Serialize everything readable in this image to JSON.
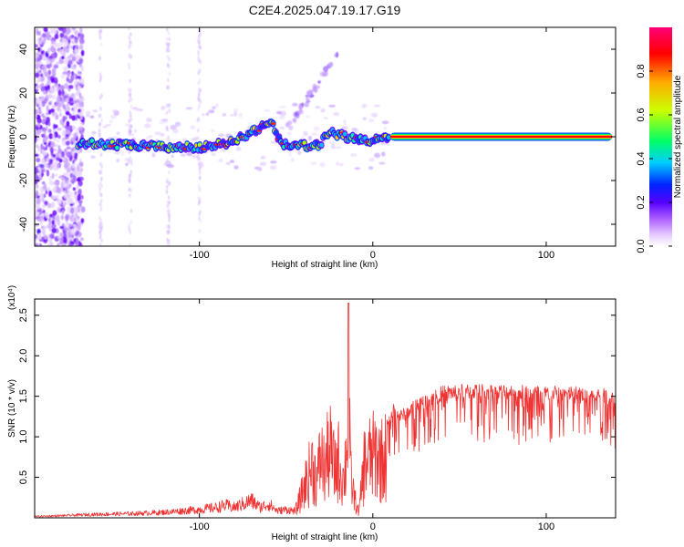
{
  "title": "C2E4.2025.047.19.17.G19",
  "chart_data": [
    {
      "type": "heatmap",
      "xlabel": "Height of straight line (km)",
      "ylabel": "Frequency (Hz)",
      "xlim": [
        -195,
        140
      ],
      "ylim": [
        -50,
        50
      ],
      "xticks": [
        -100,
        0,
        100
      ],
      "yticks": [
        -40,
        -20,
        0,
        20,
        40
      ],
      "colorbar": {
        "label": "Normalized spectral amplitude",
        "range": [
          0,
          1
        ],
        "ticks": [
          "0.0",
          "0.2",
          "0.4",
          "0.6",
          "0.8"
        ],
        "colormap": [
          "#ffffff",
          "#cc99ff",
          "#6600ff",
          "#0033ff",
          "#00ccff",
          "#00ff66",
          "#ccff00",
          "#ffaa00",
          "#ff0000",
          "#ff0077"
        ]
      },
      "ridge": {
        "x": [
          -170,
          -155,
          -140,
          -125,
          -110,
          -95,
          -85,
          -75,
          -65,
          -58,
          -55,
          -50,
          -45,
          -40,
          -35,
          -30,
          -25,
          -20,
          -10,
          0,
          10,
          50,
          100,
          138
        ],
        "y": [
          -3,
          -3.5,
          -4,
          -4.5,
          -5,
          -4.5,
          -3,
          0,
          4,
          6,
          -1,
          -4,
          -4,
          -4,
          -5,
          -3,
          2,
          1,
          -1,
          -2,
          0,
          0,
          0,
          0
        ]
      }
    },
    {
      "type": "line",
      "xlabel": "Height of straight line (km)",
      "ylabel": "SNR (10 * v/v)",
      "y_multiplier": "(x10⁴)",
      "xlim": [
        -195,
        140
      ],
      "ylim": [
        0,
        2.7
      ],
      "xticks": [
        -100,
        0,
        100
      ],
      "yticks": [
        0.5,
        1.0,
        1.5,
        2.0,
        2.5
      ],
      "ytick_labels": [
        "0.5",
        "1.0",
        "1.5",
        "2.0",
        "2.5"
      ],
      "color": "#ee3333",
      "series": [
        {
          "x": [
            -195,
            -180,
            -160,
            -140,
            -120,
            -110,
            -100,
            -90,
            -85,
            -80,
            -75,
            -70,
            -65,
            -60,
            -55,
            -50,
            -45,
            -42,
            -40,
            -37,
            -35,
            -32,
            -30,
            -28,
            -25,
            -22,
            -20,
            -17,
            -15,
            -14,
            -13,
            -12,
            -10,
            -8,
            -5,
            -3,
            0,
            2,
            5,
            10,
            12,
            15,
            20,
            25,
            30,
            40,
            50,
            60,
            70,
            80,
            90,
            100,
            110,
            120,
            130,
            138
          ],
          "y": [
            0.02,
            0.03,
            0.05,
            0.06,
            0.08,
            0.1,
            0.12,
            0.15,
            0.18,
            0.15,
            0.2,
            0.25,
            0.15,
            0.2,
            0.1,
            0.12,
            0.1,
            0.35,
            0.55,
            0.8,
            1.0,
            0.7,
            1.2,
            0.9,
            1.3,
            0.9,
            1.1,
            0.7,
            1.25,
            2.65,
            0.9,
            0.6,
            0.3,
            0.1,
            1.0,
            1.1,
            1.15,
            1.2,
            1.1,
            1.25,
            1.4,
            1.3,
            1.35,
            1.45,
            1.5,
            1.6,
            1.62,
            1.63,
            1.62,
            1.62,
            1.61,
            1.6,
            1.6,
            1.6,
            1.58,
            1.55
          ]
        }
      ]
    }
  ]
}
